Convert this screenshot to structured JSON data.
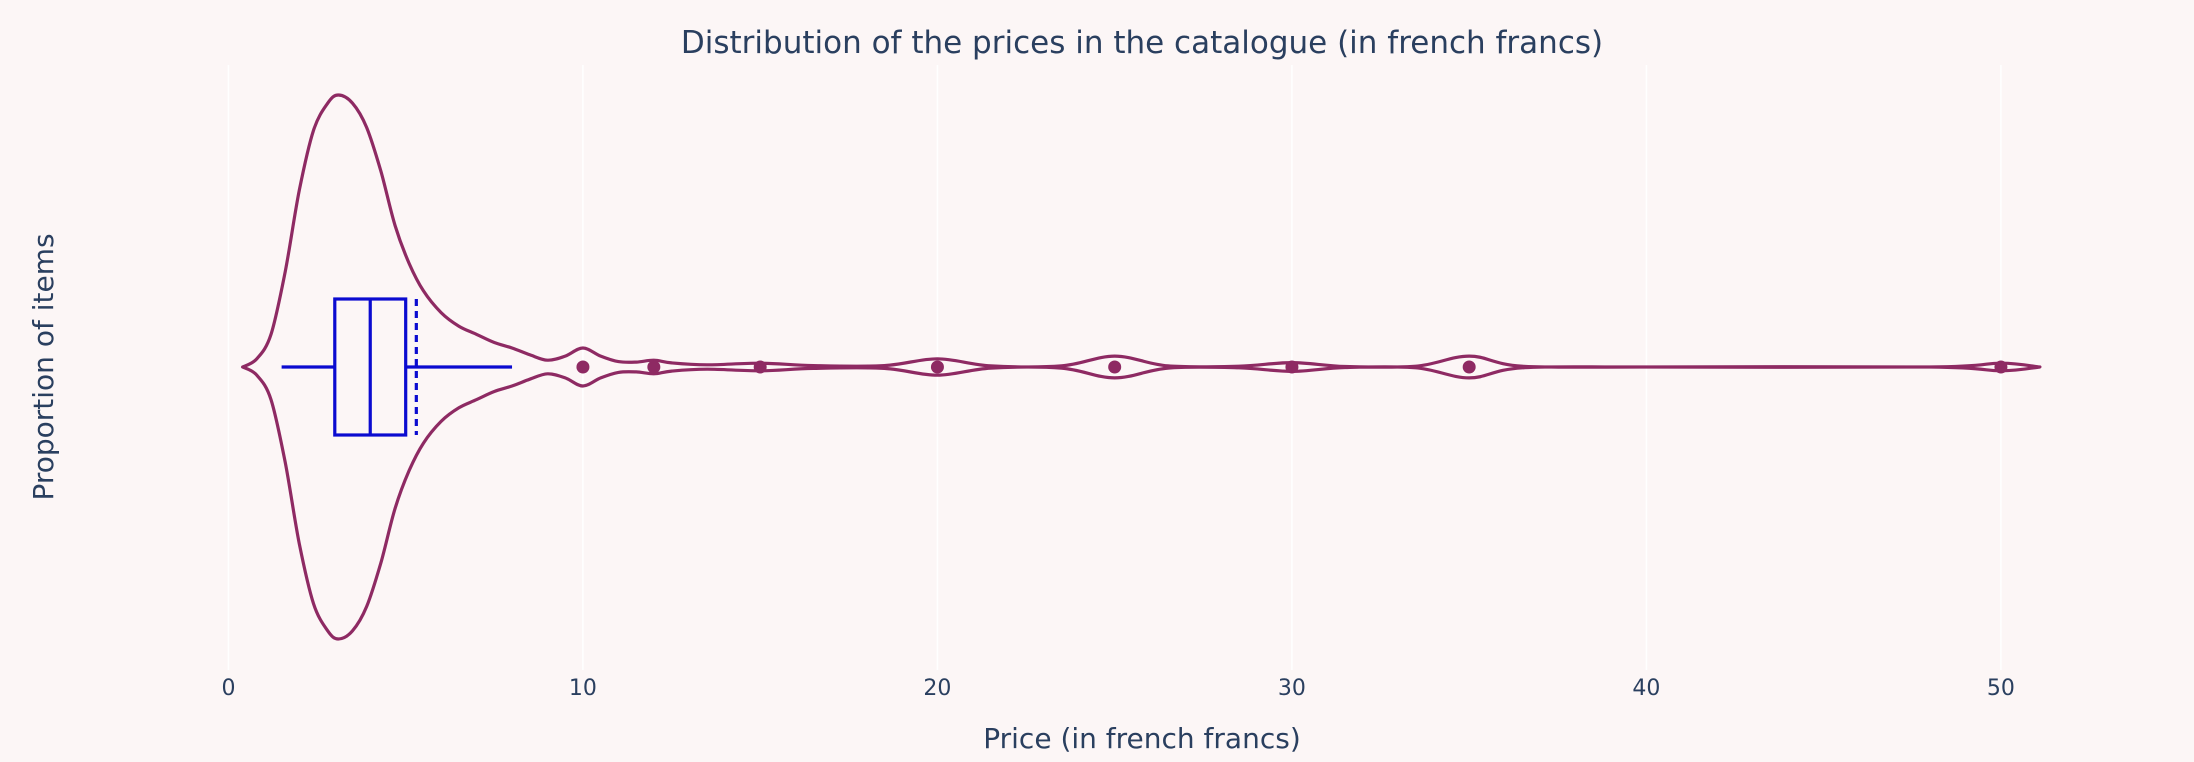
{
  "chart_data": {
    "type": "violin",
    "orientation": "horizontal",
    "title": "Distribution of the prices in the catalogue (in french francs)",
    "xlabel": "Price (in french francs)",
    "ylabel": "Proportion of items",
    "xlim": [
      -3.2,
      53.5
    ],
    "xticks": [
      0,
      10,
      20,
      30,
      40,
      50
    ],
    "grid": true,
    "legend": "none",
    "colors": {
      "background": "#fcf6f6",
      "violin": "#8e2a63",
      "box": "#0b0bd0",
      "grid": "#ffffff",
      "text": "#2a3f5f"
    },
    "violin": {
      "min": 0.4,
      "max": 51.1,
      "density": [
        [
          0.4,
          0.0
        ],
        [
          0.8,
          0.03
        ],
        [
          1.2,
          0.12
        ],
        [
          1.6,
          0.35
        ],
        [
          2.0,
          0.65
        ],
        [
          2.4,
          0.87
        ],
        [
          2.8,
          0.97
        ],
        [
          3.1,
          1.0
        ],
        [
          3.5,
          0.97
        ],
        [
          3.9,
          0.88
        ],
        [
          4.3,
          0.72
        ],
        [
          4.7,
          0.52
        ],
        [
          5.1,
          0.38
        ],
        [
          5.5,
          0.28
        ],
        [
          6.0,
          0.2
        ],
        [
          6.5,
          0.15
        ],
        [
          7.0,
          0.12
        ],
        [
          7.5,
          0.09
        ],
        [
          8.0,
          0.07
        ],
        [
          8.5,
          0.045
        ],
        [
          9.0,
          0.025
        ],
        [
          9.5,
          0.04
        ],
        [
          10.0,
          0.07
        ],
        [
          10.5,
          0.04
        ],
        [
          11.0,
          0.02
        ],
        [
          11.5,
          0.018
        ],
        [
          12.0,
          0.025
        ],
        [
          12.5,
          0.015
        ],
        [
          13.5,
          0.008
        ],
        [
          15.0,
          0.014
        ],
        [
          16.5,
          0.005
        ],
        [
          18.5,
          0.005
        ],
        [
          20.0,
          0.03
        ],
        [
          21.5,
          0.004
        ],
        [
          23.5,
          0.004
        ],
        [
          25.0,
          0.04
        ],
        [
          26.5,
          0.004
        ],
        [
          28.5,
          0.003
        ],
        [
          30.0,
          0.016
        ],
        [
          31.5,
          0.002
        ],
        [
          33.5,
          0.003
        ],
        [
          35.0,
          0.04
        ],
        [
          36.5,
          0.003
        ],
        [
          40.0,
          0.0
        ],
        [
          48.0,
          0.0
        ],
        [
          50.0,
          0.014
        ],
        [
          51.1,
          0.0
        ]
      ]
    },
    "box": {
      "lower_fence": 1.5,
      "q1": 3.0,
      "median": 4.0,
      "q3": 5.0,
      "mean": 5.3,
      "upper_fence": 8.0
    },
    "outliers": [
      10,
      12,
      15,
      20,
      25,
      30,
      35,
      50
    ]
  }
}
